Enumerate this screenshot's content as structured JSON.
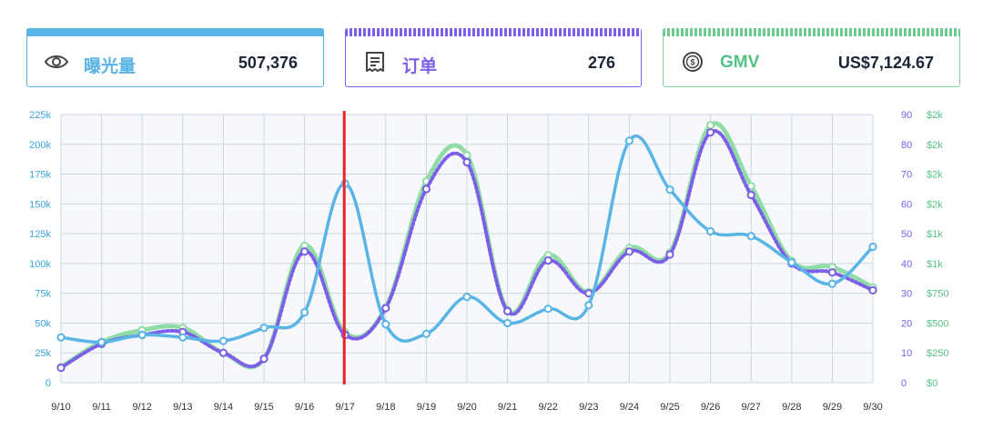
{
  "cards": [
    {
      "label": "曝光量",
      "value": "507,376",
      "icon": "eye-icon",
      "color": "#5ab4e5"
    },
    {
      "label": "订单",
      "value": "276",
      "icon": "receipt-icon",
      "color": "#7c5ee8"
    },
    {
      "label": "GMV",
      "value": "US$7,124.67",
      "icon": "dollar-coin-icon",
      "color": "#55c184"
    }
  ],
  "chart_data": {
    "type": "line",
    "categories": [
      "9/10",
      "9/11",
      "9/12",
      "9/13",
      "9/14",
      "9/15",
      "9/16",
      "9/17",
      "9/18",
      "9/19",
      "9/20",
      "9/21",
      "9/22",
      "9/23",
      "9/24",
      "9/25",
      "9/26",
      "9/27",
      "9/28",
      "9/29",
      "9/30"
    ],
    "series": [
      {
        "name": "曝光量",
        "axis": "left",
        "color": "#5ab4e5",
        "style": "solid",
        "values": [
          38000,
          34000,
          40000,
          38000,
          35000,
          46000,
          59000,
          167000,
          49000,
          41000,
          72000,
          50000,
          62000,
          65000,
          203000,
          162000,
          127000,
          123000,
          101000,
          83000,
          114000
        ]
      },
      {
        "name": "订单",
        "axis": "right1",
        "color": "#7c5ee8",
        "style": "dotted",
        "values": [
          5,
          13,
          16,
          17,
          10,
          8,
          44,
          16,
          25,
          65,
          74,
          24,
          41,
          30,
          44,
          43,
          84,
          63,
          40,
          37,
          31
        ]
      },
      {
        "name": "GMV",
        "axis": "right2",
        "color": "#8fdca6",
        "style": "dotted",
        "values": [
          130,
          340,
          440,
          460,
          250,
          200,
          1150,
          420,
          630,
          1690,
          1910,
          610,
          1070,
          760,
          1130,
          1090,
          2160,
          1650,
          1020,
          970,
          800
        ]
      }
    ],
    "left_axis": {
      "ylim": [
        0,
        225000
      ],
      "ticks": [
        "0",
        "25k",
        "50k",
        "75k",
        "100k",
        "125k",
        "150k",
        "175k",
        "200k",
        "225k"
      ]
    },
    "right_axis_1": {
      "ylim": [
        0,
        90
      ],
      "ticks": [
        "0",
        "10",
        "20",
        "30",
        "40",
        "50",
        "60",
        "70",
        "80",
        "90"
      ]
    },
    "right_axis_2": {
      "ylim": [
        0,
        2250
      ],
      "ticks": [
        "$0",
        "$250",
        "$500",
        "$750",
        "$1k",
        "$1k",
        "$2k",
        "$2k",
        "$2k",
        "$2k"
      ]
    },
    "marker": {
      "category": "9/17",
      "color": "#e8262a"
    },
    "grid": true
  }
}
